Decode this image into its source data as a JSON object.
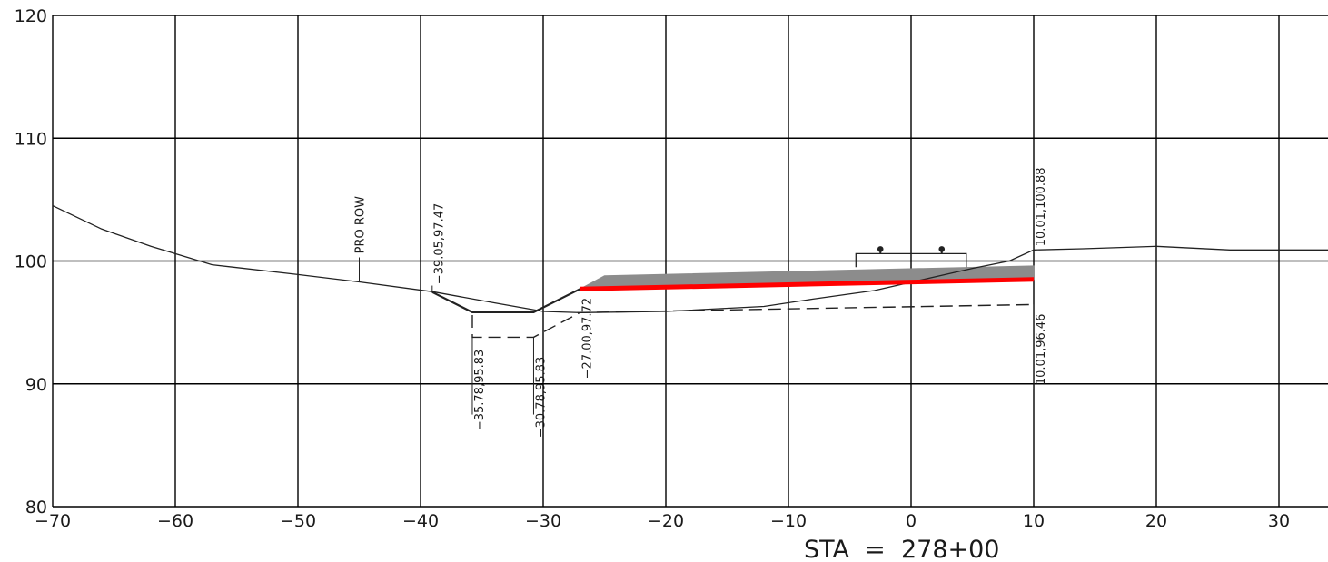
{
  "x_ticks": [
    "-70",
    "-60",
    "-50",
    "-40",
    "-30",
    "-20",
    "-10",
    "0",
    "10",
    "20",
    "30"
  ],
  "y_ticks": [
    "120",
    "110",
    "100",
    "90",
    "80"
  ],
  "station_label": "STA  =  278+00",
  "row_label": "PRO  ROW",
  "annotations": {
    "top_left_hinge": "-39.05,97.47",
    "top_right": "10.01,100.88",
    "bottom_right": "10.01,96.46",
    "ditch_left": "-35.78,95.83",
    "ditch_right": "-30.78,95.83",
    "slope_toe": "-27.00,97.72"
  },
  "colors": {
    "grid": "#000000",
    "ground_line": "#222222",
    "proposed_grade": "#ff0000",
    "pavement_fill": "#8c8c8c",
    "background": "#ffffff"
  },
  "chart_data": {
    "type": "line",
    "title": "",
    "xlabel": "",
    "ylabel": "",
    "xlim": [
      -70,
      34
    ],
    "ylim": [
      80,
      120
    ],
    "grid": true,
    "series": [
      {
        "style": "existing-ground",
        "x": [
          -70,
          -66,
          -62,
          -57,
          -50,
          -45,
          -39,
          -34,
          -30,
          -27,
          -20,
          -12,
          -8,
          -3,
          5,
          8,
          10,
          14,
          20,
          26,
          34
        ],
        "y": [
          104.5,
          102.6,
          101.2,
          99.7,
          98.9,
          98.3,
          97.5,
          96.6,
          95.9,
          95.8,
          95.9,
          96.3,
          96.9,
          97.6,
          99.4,
          100.0,
          100.9,
          101.0,
          101.2,
          100.9,
          100.9
        ]
      },
      {
        "style": "proposed-section",
        "x": [
          -39.05,
          -35.78,
          -30.78,
          -27.0
        ],
        "y": [
          97.47,
          95.83,
          95.83,
          97.72
        ]
      },
      {
        "style": "ditch-bottom",
        "x": [
          -35.78,
          -30.78
        ],
        "y": [
          95.8,
          95.8
        ]
      },
      {
        "style": "subgrade-dashed",
        "x": [
          -35.78,
          -35.78,
          -30.78,
          -27.0,
          10.01
        ],
        "y": [
          95.6,
          93.8,
          93.8,
          95.8,
          96.46
        ]
      },
      {
        "style": "proposed-grade-red",
        "x": [
          -27.0,
          10.01
        ],
        "y": [
          97.72,
          98.5
        ]
      },
      {
        "style": "pavement-gray",
        "x": [
          -27.0,
          -25.0,
          10.01,
          10.01,
          -27.0
        ],
        "y": [
          97.72,
          98.8,
          99.6,
          98.5,
          97.72
        ]
      },
      {
        "style": "track-structure",
        "x": [
          -4.5,
          -4.5,
          4.5,
          4.5
        ],
        "y": [
          99.5,
          100.6,
          100.6,
          99.5
        ]
      }
    ],
    "markers": [
      {
        "x": -2.5,
        "y": 100.6,
        "label": ""
      },
      {
        "x": 2.5,
        "y": 100.6,
        "label": ""
      }
    ]
  }
}
